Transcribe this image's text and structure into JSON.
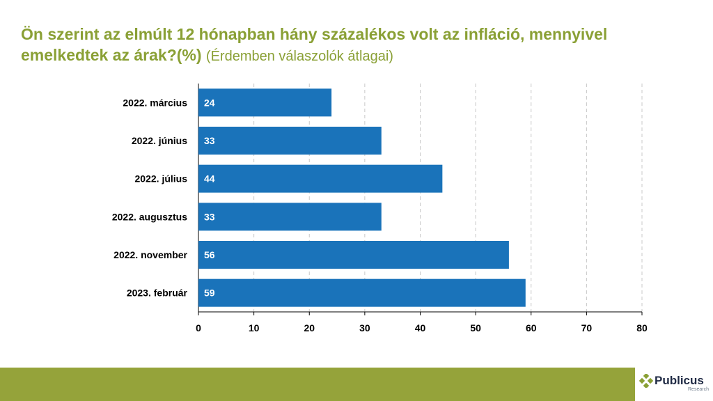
{
  "title": {
    "main": "Ön szerint az elmúlt 12 hónapban hány százalékos volt az infláció, mennyivel emelkedtek az árak?(%)",
    "sub": "(Érdemben válaszolók átlagai)"
  },
  "colors": {
    "bar": "#1a73ba",
    "title": "#8aa035",
    "footer": "#95a33a"
  },
  "chart_data": {
    "type": "bar",
    "orientation": "horizontal",
    "categories": [
      "2022. március",
      "2022. június",
      "2022. július",
      "2022. augusztus",
      "2022. november",
      "2023. február"
    ],
    "values": [
      24,
      33,
      44,
      33,
      56,
      59
    ],
    "xlim": [
      0,
      80
    ],
    "xticks": [
      0,
      10,
      20,
      30,
      40,
      50,
      60,
      70,
      80
    ],
    "grid": "vertical dashed",
    "data_labels": "inside bar start"
  },
  "logo": {
    "name": "Publicus",
    "tagline": "Research"
  }
}
